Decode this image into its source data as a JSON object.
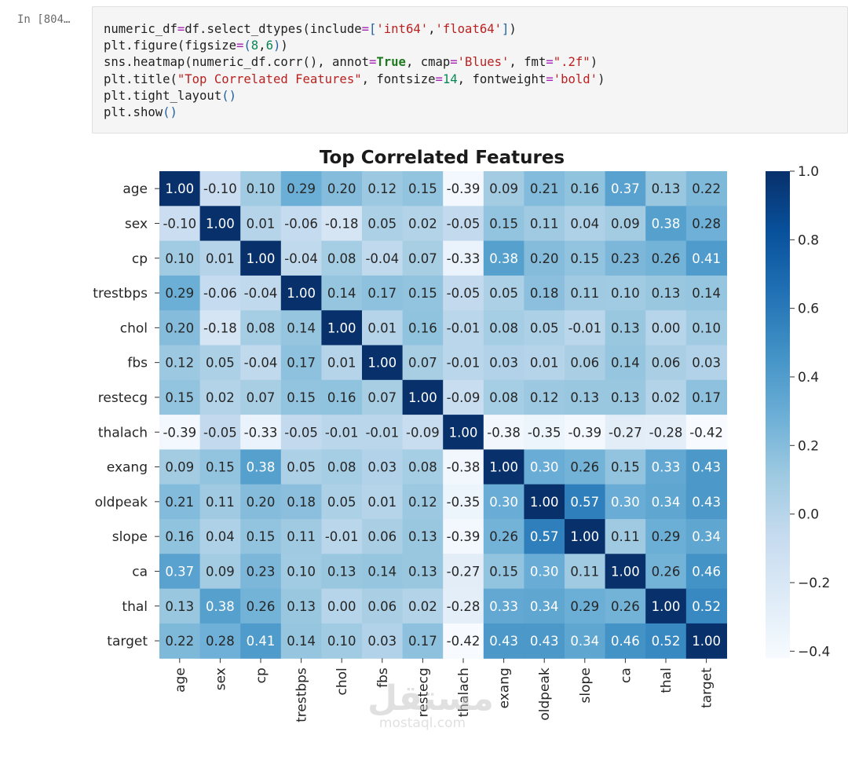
{
  "cell": {
    "prompt": "In [804…",
    "code_lines": [
      [
        [
          "t",
          "numeric_df"
        ],
        [
          "eq",
          "="
        ],
        [
          "t",
          "df.select_dtypes(include"
        ],
        [
          "eq",
          "="
        ],
        [
          "par",
          "["
        ],
        [
          "str",
          "'int64'"
        ],
        [
          "t",
          ","
        ],
        [
          "str",
          "'float64'"
        ],
        [
          "par",
          "]"
        ],
        [
          "t",
          ")"
        ]
      ],
      [
        [
          "t",
          "plt.figure(figsize"
        ],
        [
          "eq",
          "="
        ],
        [
          "par",
          "("
        ],
        [
          "num",
          "8"
        ],
        [
          "t",
          ","
        ],
        [
          "num",
          "6"
        ],
        [
          "par",
          ")"
        ],
        [
          "t",
          ")"
        ]
      ],
      [
        [
          "t",
          "sns.heatmap(numeric_df.corr(), annot"
        ],
        [
          "eq",
          "="
        ],
        [
          "kw",
          "True"
        ],
        [
          "t",
          ", cmap"
        ],
        [
          "eq",
          "="
        ],
        [
          "str",
          "'Blues'"
        ],
        [
          "t",
          ", fmt"
        ],
        [
          "eq",
          "="
        ],
        [
          "str",
          "\".2f\""
        ],
        [
          "t",
          ")"
        ]
      ],
      [
        [
          "t",
          "plt.title("
        ],
        [
          "str",
          "\"Top Correlated Features\""
        ],
        [
          "t",
          ", fontsize"
        ],
        [
          "eq",
          "="
        ],
        [
          "num",
          "14"
        ],
        [
          "t",
          ", fontweight"
        ],
        [
          "eq",
          "="
        ],
        [
          "str",
          "'bold'"
        ],
        [
          "t",
          ")"
        ]
      ],
      [
        [
          "t",
          "plt.tight_layout"
        ],
        [
          "par",
          "()"
        ]
      ],
      [
        [
          "t",
          "plt.show"
        ],
        [
          "par",
          "()"
        ]
      ]
    ]
  },
  "chart_data": {
    "type": "heatmap",
    "title": "Top Correlated Features",
    "labels": [
      "age",
      "sex",
      "cp",
      "trestbps",
      "chol",
      "fbs",
      "restecg",
      "thalach",
      "exang",
      "oldpeak",
      "slope",
      "ca",
      "thal",
      "target"
    ],
    "matrix": [
      [
        1.0,
        -0.1,
        0.1,
        0.29,
        0.2,
        0.12,
        0.15,
        -0.39,
        0.09,
        0.21,
        0.16,
        0.37,
        0.13,
        0.22
      ],
      [
        -0.1,
        1.0,
        0.01,
        -0.06,
        -0.18,
        0.05,
        0.02,
        -0.05,
        0.15,
        0.11,
        0.04,
        0.09,
        0.38,
        0.28
      ],
      [
        0.1,
        0.01,
        1.0,
        -0.04,
        0.08,
        -0.04,
        0.07,
        -0.33,
        0.38,
        0.2,
        0.15,
        0.23,
        0.26,
        0.41
      ],
      [
        0.29,
        -0.06,
        -0.04,
        1.0,
        0.14,
        0.17,
        0.15,
        -0.05,
        0.05,
        0.18,
        0.11,
        0.1,
        0.13,
        0.14
      ],
      [
        0.2,
        -0.18,
        0.08,
        0.14,
        1.0,
        0.01,
        0.16,
        -0.01,
        0.08,
        0.05,
        -0.01,
        0.13,
        0.0,
        0.1
      ],
      [
        0.12,
        0.05,
        -0.04,
        0.17,
        0.01,
        1.0,
        0.07,
        -0.01,
        0.03,
        0.01,
        0.06,
        0.14,
        0.06,
        0.03
      ],
      [
        0.15,
        0.02,
        0.07,
        0.15,
        0.16,
        0.07,
        1.0,
        -0.09,
        0.08,
        0.12,
        0.13,
        0.13,
        0.02,
        0.17
      ],
      [
        -0.39,
        -0.05,
        -0.33,
        -0.05,
        -0.01,
        -0.01,
        -0.09,
        1.0,
        -0.38,
        -0.35,
        -0.39,
        -0.27,
        -0.28,
        -0.42
      ],
      [
        0.09,
        0.15,
        0.38,
        0.05,
        0.08,
        0.03,
        0.08,
        -0.38,
        1.0,
        0.3,
        0.26,
        0.15,
        0.33,
        0.43
      ],
      [
        0.21,
        0.11,
        0.2,
        0.18,
        0.05,
        0.01,
        0.12,
        -0.35,
        0.3,
        1.0,
        0.57,
        0.3,
        0.34,
        0.43
      ],
      [
        0.16,
        0.04,
        0.15,
        0.11,
        -0.01,
        0.06,
        0.13,
        -0.39,
        0.26,
        0.57,
        1.0,
        0.11,
        0.29,
        0.34
      ],
      [
        0.37,
        0.09,
        0.23,
        0.1,
        0.13,
        0.14,
        0.13,
        -0.27,
        0.15,
        0.3,
        0.11,
        1.0,
        0.26,
        0.46
      ],
      [
        0.13,
        0.38,
        0.26,
        0.13,
        0.0,
        0.06,
        0.02,
        -0.28,
        0.33,
        0.34,
        0.29,
        0.26,
        1.0,
        0.52
      ],
      [
        0.22,
        0.28,
        0.41,
        0.14,
        0.1,
        0.03,
        0.17,
        -0.42,
        0.43,
        0.43,
        0.34,
        0.46,
        0.52,
        1.0
      ]
    ],
    "colormap": "Blues",
    "vmin": -0.42,
    "vmax": 1.0,
    "colorbar_ticks": [
      1.0,
      0.8,
      0.6,
      0.4,
      0.2,
      0.0,
      -0.2,
      -0.4
    ],
    "colorbar_tick_labels": [
      "1.0",
      "0.8",
      "0.6",
      "0.4",
      "0.2",
      "0.0",
      "−0.2",
      "−0.4"
    ]
  },
  "watermark": {
    "logo": "مستقل",
    "text": "mostaql.com"
  }
}
